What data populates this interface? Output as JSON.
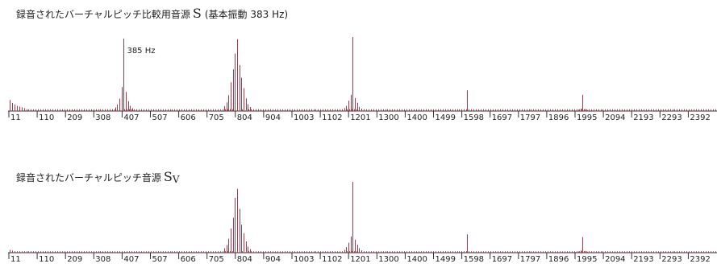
{
  "chart_data": [
    {
      "type": "bar",
      "title": "録音されたバーチャルピッチ比較用音源",
      "symbol": "S",
      "subtitle": "(基本振動 383 Hz)",
      "annotation": {
        "text": "385 Hz",
        "x": 385
      },
      "bar_color": "#a33a4c",
      "axis_color": "#333333",
      "xlim": [
        1,
        2400
      ],
      "ylim": [
        0,
        1
      ],
      "tick_labels": [
        "11",
        "110",
        "209",
        "308",
        "407",
        "507",
        "606",
        "705",
        "804",
        "904",
        "1003",
        "1102",
        "1201",
        "1300",
        "1400",
        "1499",
        "1598",
        "1697",
        "1797",
        "1896",
        "1995",
        "2094",
        "2193",
        "2293",
        "2392"
      ],
      "peaks": [
        {
          "freq": 385,
          "amp": 0.98,
          "width": 50,
          "side": [
            0.33,
            0.17,
            0.09,
            0.05
          ]
        },
        {
          "freq": 764,
          "amp": 0.97,
          "width": 55,
          "side": [
            0.8,
            0.58,
            0.4,
            0.22,
            0.12,
            0.07
          ]
        },
        {
          "freq": 1150,
          "amp": 1.0,
          "width": 42,
          "side": [
            0.22,
            0.14,
            0.07,
            0.04
          ]
        },
        {
          "freq": 1532,
          "amp": 0.28,
          "width": 0,
          "side": []
        },
        {
          "freq": 1918,
          "amp": 0.22,
          "width": 30,
          "side": [
            0.15,
            0.08,
            0.04
          ]
        }
      ],
      "baseline_amp": 0.025,
      "low_freq_amps": [
        0.15,
        0.11,
        0.09,
        0.07,
        0.06,
        0.05,
        0.04
      ]
    },
    {
      "type": "bar",
      "title": "録音されたバーチャルピッチ音源",
      "symbol": "S",
      "symbol_sub": "V",
      "bar_color": "#a33a4c",
      "axis_color": "#333333",
      "xlim": [
        1,
        2400
      ],
      "ylim": [
        0,
        1
      ],
      "tick_labels": [
        "11",
        "110",
        "209",
        "308",
        "407",
        "507",
        "606",
        "705",
        "804",
        "904",
        "1003",
        "1102",
        "1201",
        "1300",
        "1400",
        "1499",
        "1598",
        "1697",
        "1797",
        "1896",
        "1995",
        "2094",
        "2193",
        "2293",
        "2392"
      ],
      "peaks": [
        {
          "freq": 764,
          "amp": 0.9,
          "width": 55,
          "side": [
            0.86,
            0.55,
            0.38,
            0.22,
            0.12,
            0.07
          ]
        },
        {
          "freq": 1150,
          "amp": 1.0,
          "width": 42,
          "side": [
            0.23,
            0.14,
            0.08,
            0.04
          ]
        },
        {
          "freq": 1532,
          "amp": 0.26,
          "width": 0,
          "side": []
        },
        {
          "freq": 1918,
          "amp": 0.22,
          "width": 30,
          "side": [
            0.14,
            0.08,
            0.04
          ]
        }
      ],
      "baseline_amp": 0.02,
      "low_freq_amps": [
        0.04,
        0.03,
        0.02
      ]
    }
  ]
}
